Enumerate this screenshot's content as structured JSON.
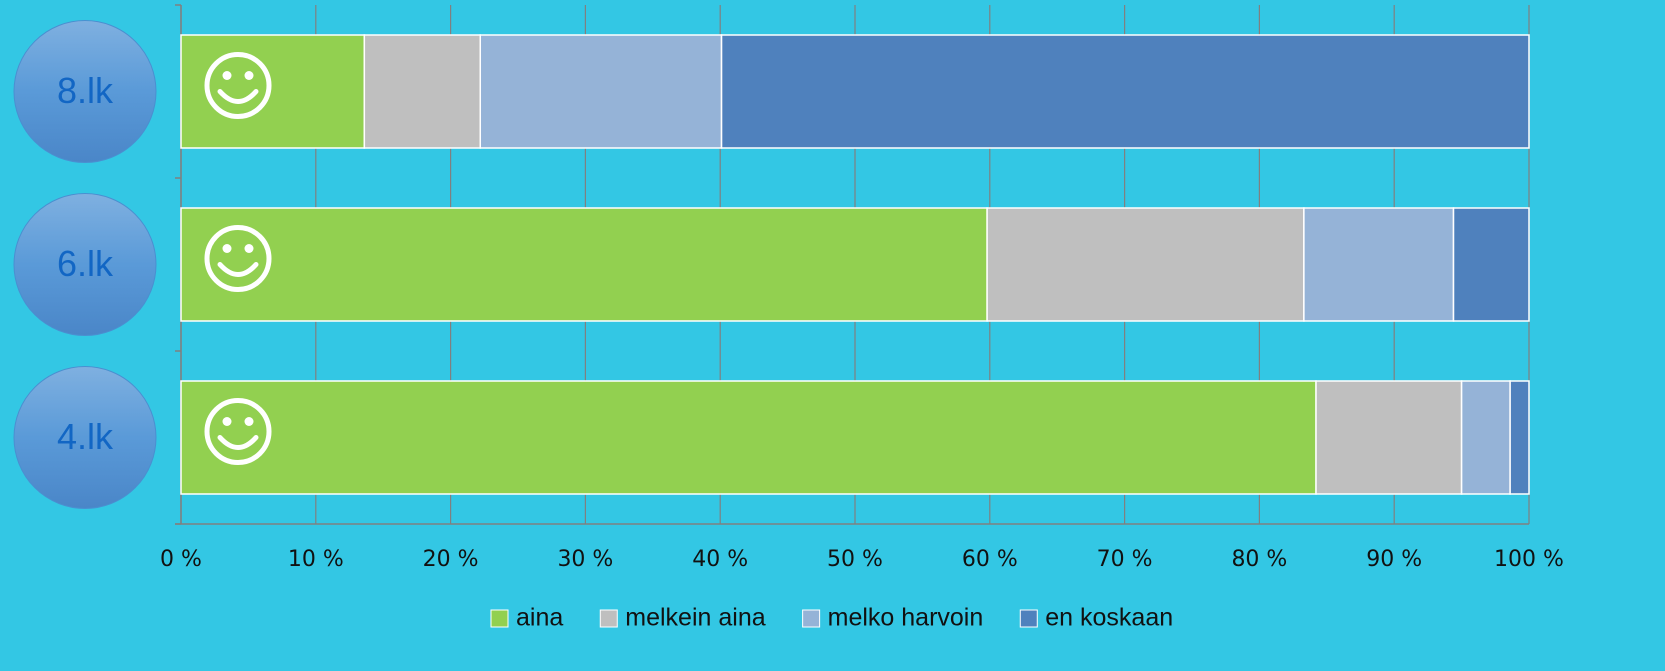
{
  "chart_data": {
    "type": "stacked-bar-horizontal",
    "categories": [
      "8.lk",
      "6.lk",
      "4.lk"
    ],
    "series": [
      {
        "name": "aina",
        "color": "#92d050",
        "values": [
          13.6,
          59.8,
          84.2
        ]
      },
      {
        "name": "melkein aina",
        "color": "#bfbfbf",
        "values": [
          8.6,
          23.5,
          10.8
        ]
      },
      {
        "name": "melko harvoin",
        "color": "#95b3d7",
        "values": [
          17.9,
          11.1,
          3.6
        ]
      },
      {
        "name": "en koskaan",
        "color": "#4f81bd",
        "values": [
          59.9,
          5.6,
          1.4
        ]
      }
    ],
    "xlim": [
      0,
      100
    ],
    "xticks": [
      {
        "value": 0,
        "label": "0 %"
      },
      {
        "value": 10,
        "label": "10 %"
      },
      {
        "value": 20,
        "label": "20 %"
      },
      {
        "value": 30,
        "label": "30 %"
      },
      {
        "value": 40,
        "label": "40 %"
      },
      {
        "value": 50,
        "label": "50 %"
      },
      {
        "value": 60,
        "label": "60 %"
      },
      {
        "value": 70,
        "label": "70 %"
      },
      {
        "value": 80,
        "label": "80 %"
      },
      {
        "value": 90,
        "label": "90 %"
      },
      {
        "value": 100,
        "label": "100 %"
      }
    ],
    "grid": true,
    "legend": "bottom"
  }
}
